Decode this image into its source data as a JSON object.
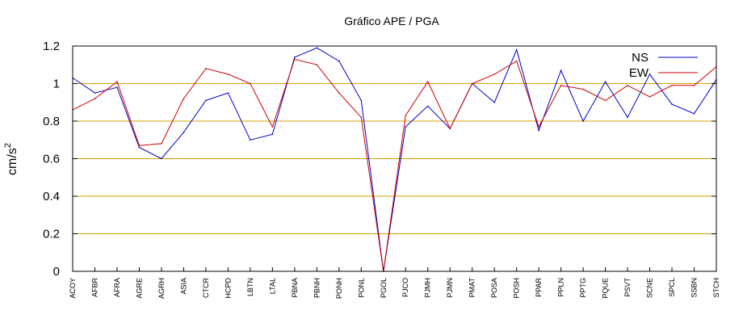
{
  "chart_data": {
    "type": "line",
    "title": "Gráfico APE / PGA",
    "ylabel": "cm/s",
    "ylabel_superscript": "2",
    "ylim": [
      0,
      1.2
    ],
    "yticks": [
      "0",
      "0.2",
      "0.4",
      "0.6",
      "0.8",
      "1",
      "1.2"
    ],
    "ytick_values": [
      0,
      0.2,
      0.4,
      0.6,
      0.8,
      1.0,
      1.2
    ],
    "grid": "horizontal",
    "grid_color": "#d4a000",
    "legend_position": "top-right",
    "categories": [
      "ACOY",
      "AFBR",
      "AFRA",
      "AGRE",
      "AGRH",
      "ASIA",
      "CTCR",
      "HCPD",
      "LBTN",
      "LTAL",
      "PBNA",
      "PBNH",
      "PONH",
      "PONL",
      "PGOL",
      "PJCO",
      "PJMH",
      "PJMN",
      "PMAT",
      "POSA",
      "POSH",
      "PPAR",
      "PPLN",
      "PPTG",
      "PQUE",
      "PSVT",
      "SCNE",
      "SPCL",
      "SSBN",
      "STCH"
    ],
    "series": [
      {
        "name": "NS",
        "color": "#0000cc",
        "values": [
          1.03,
          0.95,
          0.98,
          0.66,
          0.6,
          0.74,
          0.91,
          0.95,
          0.7,
          0.73,
          1.14,
          1.19,
          1.12,
          0.91,
          0.0,
          0.77,
          0.88,
          0.76,
          1.0,
          0.9,
          1.18,
          0.75,
          1.07,
          0.8,
          1.01,
          0.82,
          1.05,
          0.89,
          0.84,
          1.02
        ]
      },
      {
        "name": "EW",
        "color": "#cc0000",
        "values": [
          0.86,
          0.92,
          1.01,
          0.67,
          0.68,
          0.92,
          1.08,
          1.05,
          1.0,
          0.77,
          1.13,
          1.1,
          0.95,
          0.82,
          0.0,
          0.83,
          1.01,
          0.76,
          1.0,
          1.05,
          1.12,
          0.77,
          0.99,
          0.97,
          0.91,
          0.99,
          0.93,
          0.99,
          0.99,
          1.09
        ]
      }
    ]
  }
}
